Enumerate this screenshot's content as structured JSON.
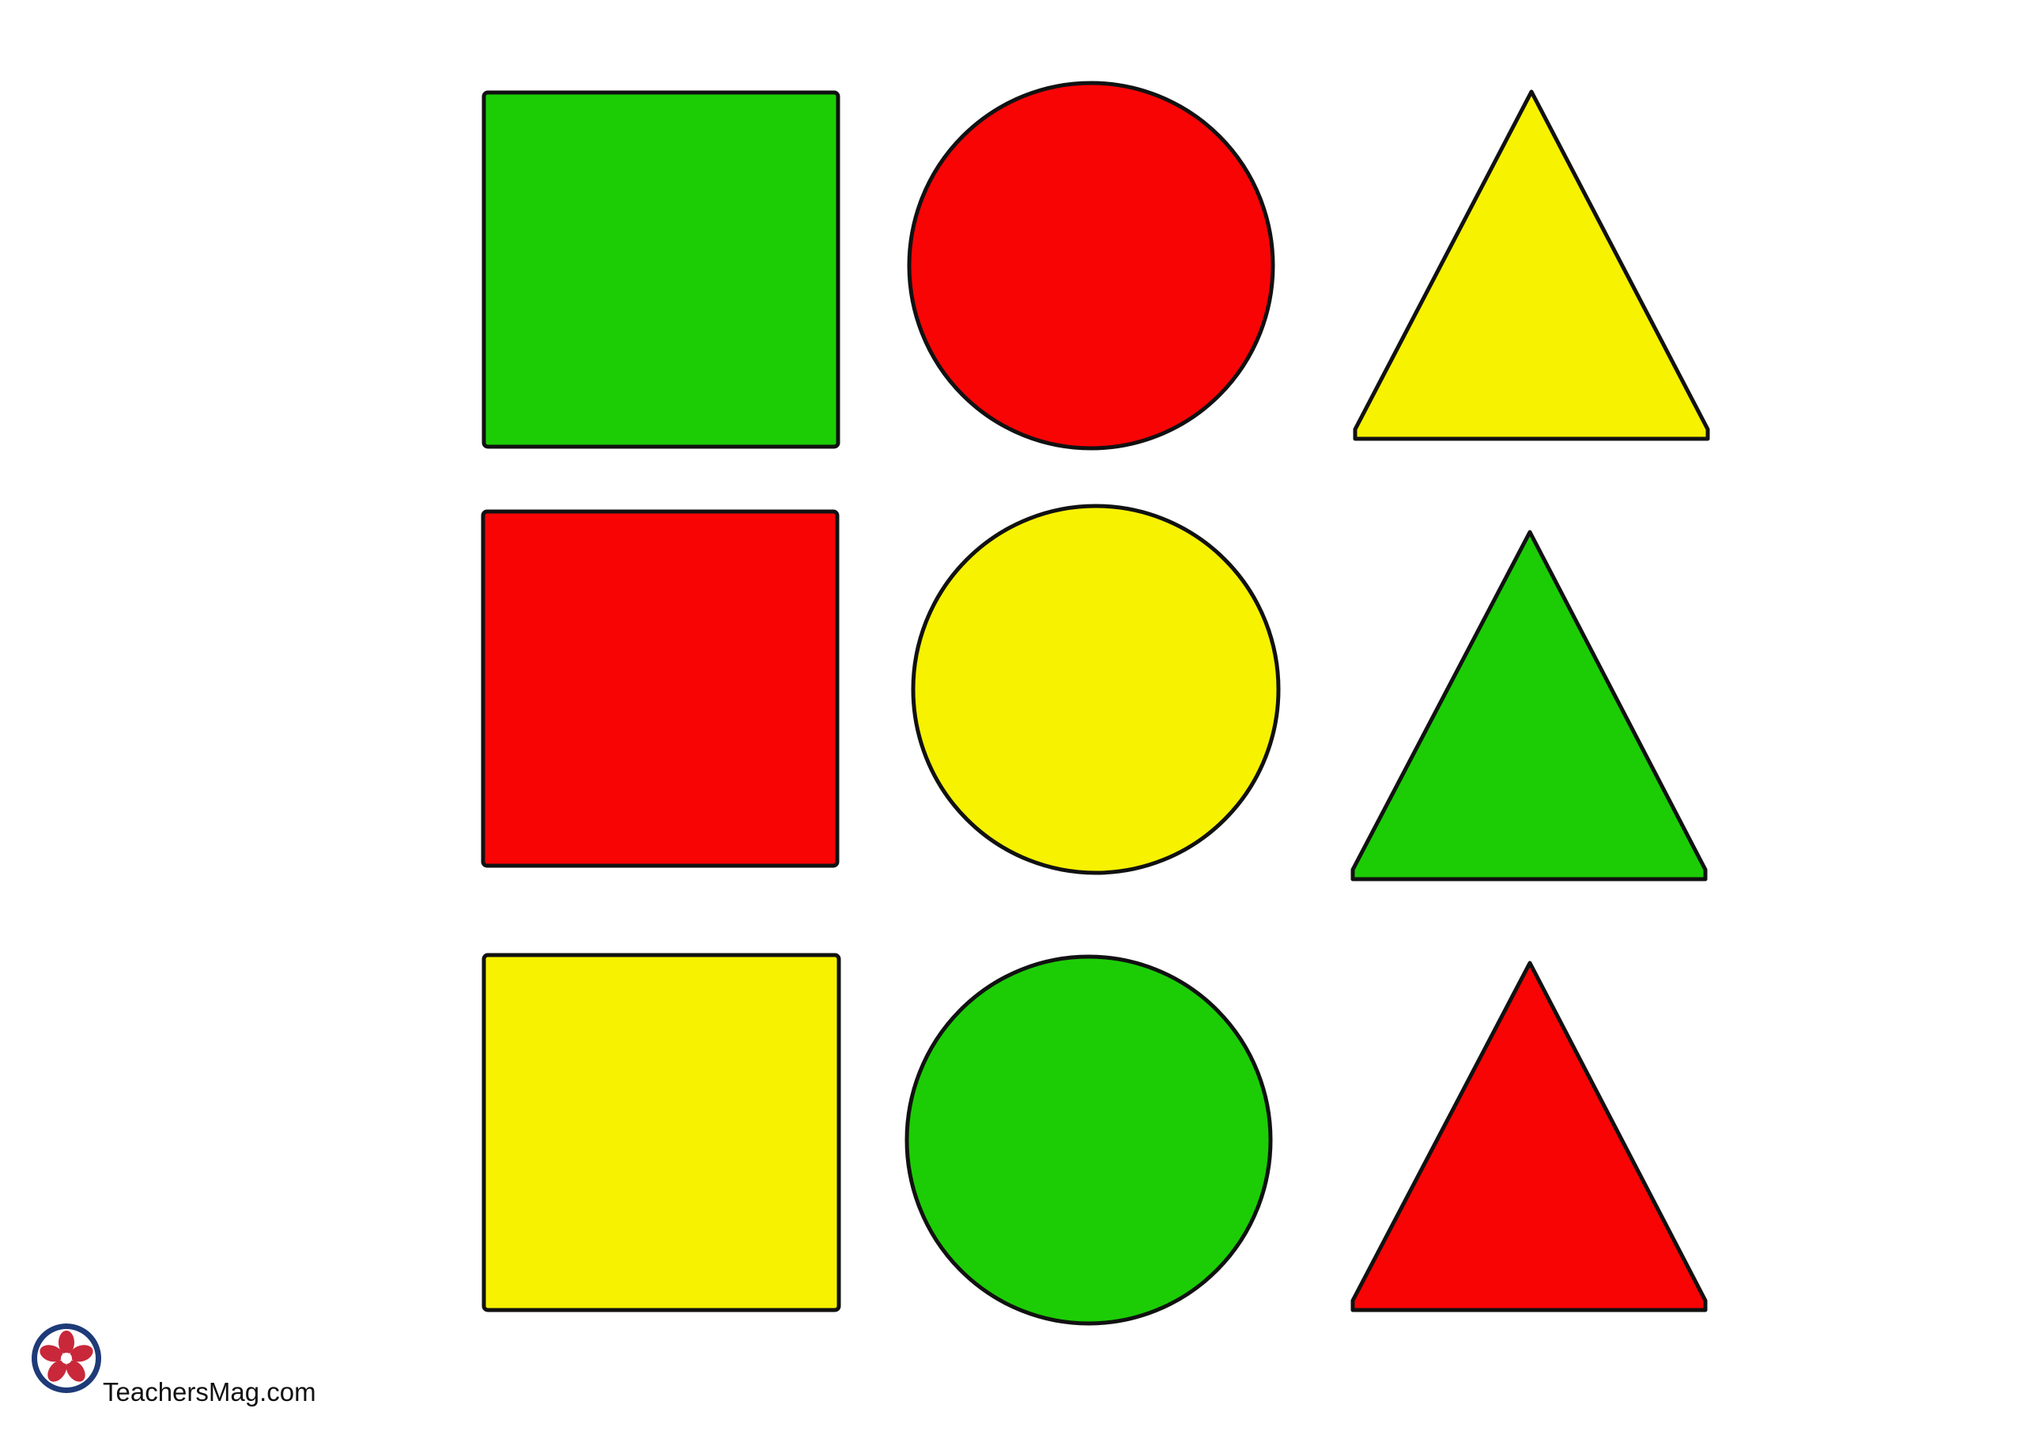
{
  "colors": {
    "green": "#1ccd05",
    "red": "#f90405",
    "yellow": "#f7f200",
    "outline": "#111111",
    "logo_navy": "#1e3a78",
    "logo_red": "#c8283a"
  },
  "grid": {
    "rows": [
      [
        "green",
        "red",
        "yellow"
      ],
      [
        "red",
        "yellow",
        "green"
      ],
      [
        "yellow",
        "green",
        "red"
      ]
    ],
    "columns": [
      "square",
      "circle",
      "triangle"
    ]
  },
  "brand": {
    "text": "TeachersMag.com",
    "logo_icon": "flower-logo-icon"
  }
}
